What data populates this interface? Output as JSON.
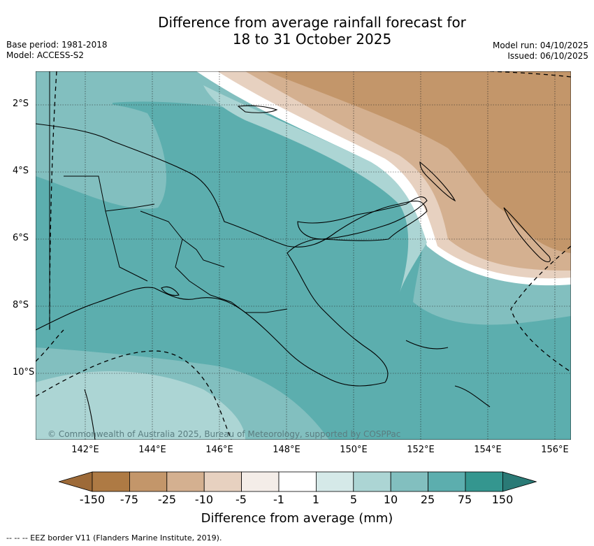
{
  "title_line1": "Difference from average rainfall forecast for",
  "title_line2": "18 to 31 October 2025",
  "base_period": "Base period: 1981-2018",
  "model": "Model: ACCESS-S2",
  "model_run": "Model run: 04/10/2025",
  "issued": "Issued: 06/10/2025",
  "x_ticks": [
    "142°E",
    "144°E",
    "146°E",
    "148°E",
    "150°E",
    "152°E",
    "154°E",
    "156°E"
  ],
  "y_ticks": [
    "2°S",
    "4°S",
    "6°S",
    "8°S",
    "10°S"
  ],
  "credit": "© Commonwealth of Australia 2025, Bureau of Meteorology, supported by COSPPac",
  "colorbar": {
    "labels": [
      "-150",
      "-75",
      "-25",
      "-10",
      "-5",
      "-1",
      "1",
      "5",
      "10",
      "25",
      "75",
      "150"
    ],
    "colors": [
      "#9d6a38",
      "#ae7a44",
      "#c3966a",
      "#d4b090",
      "#e7d1c0",
      "#f4ede8",
      "#ffffff",
      "#d5e9e8",
      "#acd5d4",
      "#82bfbf",
      "#5caeae",
      "#34968f",
      "#2a7a76"
    ],
    "title": "Difference from average (mm)"
  },
  "legend_footer": "--  --  -- EEZ border V11 (Flanders Marine Institute, 2019)."
}
